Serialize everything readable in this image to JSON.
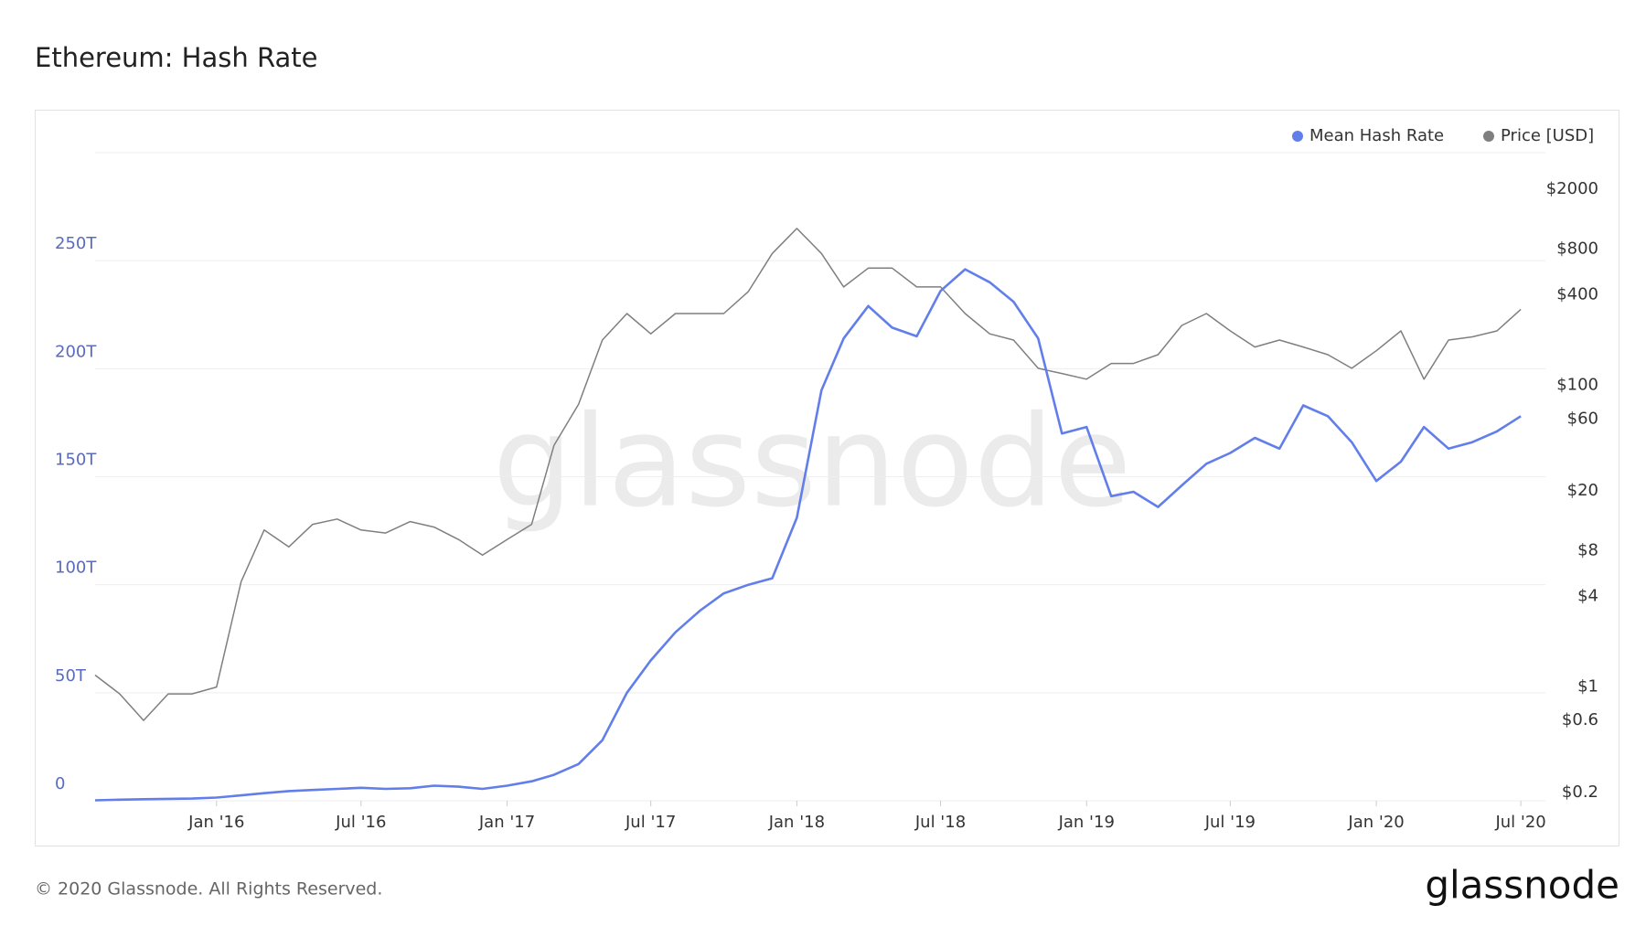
{
  "chart_data": {
    "type": "line",
    "title": "Ethereum: Hash Rate",
    "x": [
      "2015-08",
      "2015-09",
      "2015-10",
      "2015-11",
      "2015-12",
      "2016-01",
      "2016-02",
      "2016-03",
      "2016-04",
      "2016-05",
      "2016-06",
      "2016-07",
      "2016-08",
      "2016-09",
      "2016-10",
      "2016-11",
      "2016-12",
      "2017-01",
      "2017-02",
      "2017-03",
      "2017-04",
      "2017-05",
      "2017-06",
      "2017-07",
      "2017-08",
      "2017-09",
      "2017-10",
      "2017-11",
      "2017-12",
      "2018-01",
      "2018-02",
      "2018-03",
      "2018-04",
      "2018-05",
      "2018-06",
      "2018-07",
      "2018-08",
      "2018-09",
      "2018-10",
      "2018-11",
      "2018-12",
      "2019-01",
      "2019-02",
      "2019-03",
      "2019-04",
      "2019-05",
      "2019-06",
      "2019-07",
      "2019-08",
      "2019-09",
      "2019-10",
      "2019-11",
      "2019-12",
      "2020-01",
      "2020-02",
      "2020-03",
      "2020-04",
      "2020-05",
      "2020-06",
      "2020-07"
    ],
    "series": [
      {
        "name": "Mean Hash Rate",
        "color": "#627eea",
        "values": [
          0.2,
          0.5,
          0.7,
          0.9,
          1.0,
          1.5,
          2.5,
          3.5,
          4.5,
          5,
          5.5,
          6,
          5.5,
          5.8,
          7,
          6.5,
          5.5,
          7,
          9,
          12,
          17,
          28,
          50,
          65,
          78,
          88,
          96,
          100,
          103,
          131,
          190,
          214,
          229,
          219,
          215,
          236,
          246,
          240,
          231,
          214,
          170,
          173,
          141,
          143,
          136,
          146,
          156,
          161,
          168,
          163,
          183,
          178,
          166,
          148,
          157,
          173,
          163,
          166,
          171,
          178
        ]
      },
      {
        "name": "Price [USD]",
        "color": "#7f7f7f",
        "axis": "y2",
        "values": [
          1.2,
          0.9,
          0.6,
          0.9,
          0.9,
          1.0,
          5.0,
          11,
          8.5,
          12,
          13,
          11,
          10.5,
          12.5,
          11.5,
          9.5,
          7.5,
          9.5,
          12,
          40,
          75,
          200,
          300,
          220,
          300,
          300,
          300,
          420,
          750,
          1100,
          750,
          450,
          600,
          600,
          450,
          450,
          300,
          220,
          200,
          130,
          120,
          110,
          140,
          140,
          160,
          250,
          300,
          230,
          180,
          200,
          180,
          160,
          130,
          170,
          230,
          110,
          200,
          210,
          230,
          320
        ]
      }
    ],
    "xlim": [
      "2015-08",
      "2020-08"
    ],
    "xticks": [
      {
        "value": "2016-01",
        "label": "Jan '16"
      },
      {
        "value": "2016-07",
        "label": "Jul '16"
      },
      {
        "value": "2017-01",
        "label": "Jan '17"
      },
      {
        "value": "2017-07",
        "label": "Jul '17"
      },
      {
        "value": "2018-01",
        "label": "Jan '18"
      },
      {
        "value": "2018-07",
        "label": "Jul '18"
      },
      {
        "value": "2019-01",
        "label": "Jan '19"
      },
      {
        "value": "2019-07",
        "label": "Jul '19"
      },
      {
        "value": "2020-01",
        "label": "Jan '20"
      },
      {
        "value": "2020-07",
        "label": "Jul '20"
      }
    ],
    "ylim": [
      0,
      300
    ],
    "yticks": [
      0,
      {
        "value": 50,
        "label": "50T"
      },
      {
        "value": 100,
        "label": "100T"
      },
      {
        "value": 150,
        "label": "150T"
      },
      {
        "value": 200,
        "label": "200T"
      },
      {
        "value": 250,
        "label": "250T"
      }
    ],
    "y2lim": [
      0.176,
      3500
    ],
    "y2log": true,
    "y2ticks": [
      {
        "value": 0.2,
        "label": "$0.2"
      },
      {
        "value": 0.6,
        "label": "$0.6"
      },
      {
        "value": 1,
        "label": "$1"
      },
      {
        "value": 4,
        "label": "$4"
      },
      {
        "value": 8,
        "label": "$8"
      },
      {
        "value": 20,
        "label": "$20"
      },
      {
        "value": 60,
        "label": "$60"
      },
      {
        "value": 100,
        "label": "$100"
      },
      {
        "value": 400,
        "label": "$400"
      },
      {
        "value": 800,
        "label": "$800"
      },
      {
        "value": 2000,
        "label": "$2000"
      }
    ],
    "grid": true,
    "legend": "top-right",
    "watermark": "glassnode",
    "copyright": "© 2020 Glassnode. All Rights Reserved.",
    "brand": "glassnode"
  }
}
